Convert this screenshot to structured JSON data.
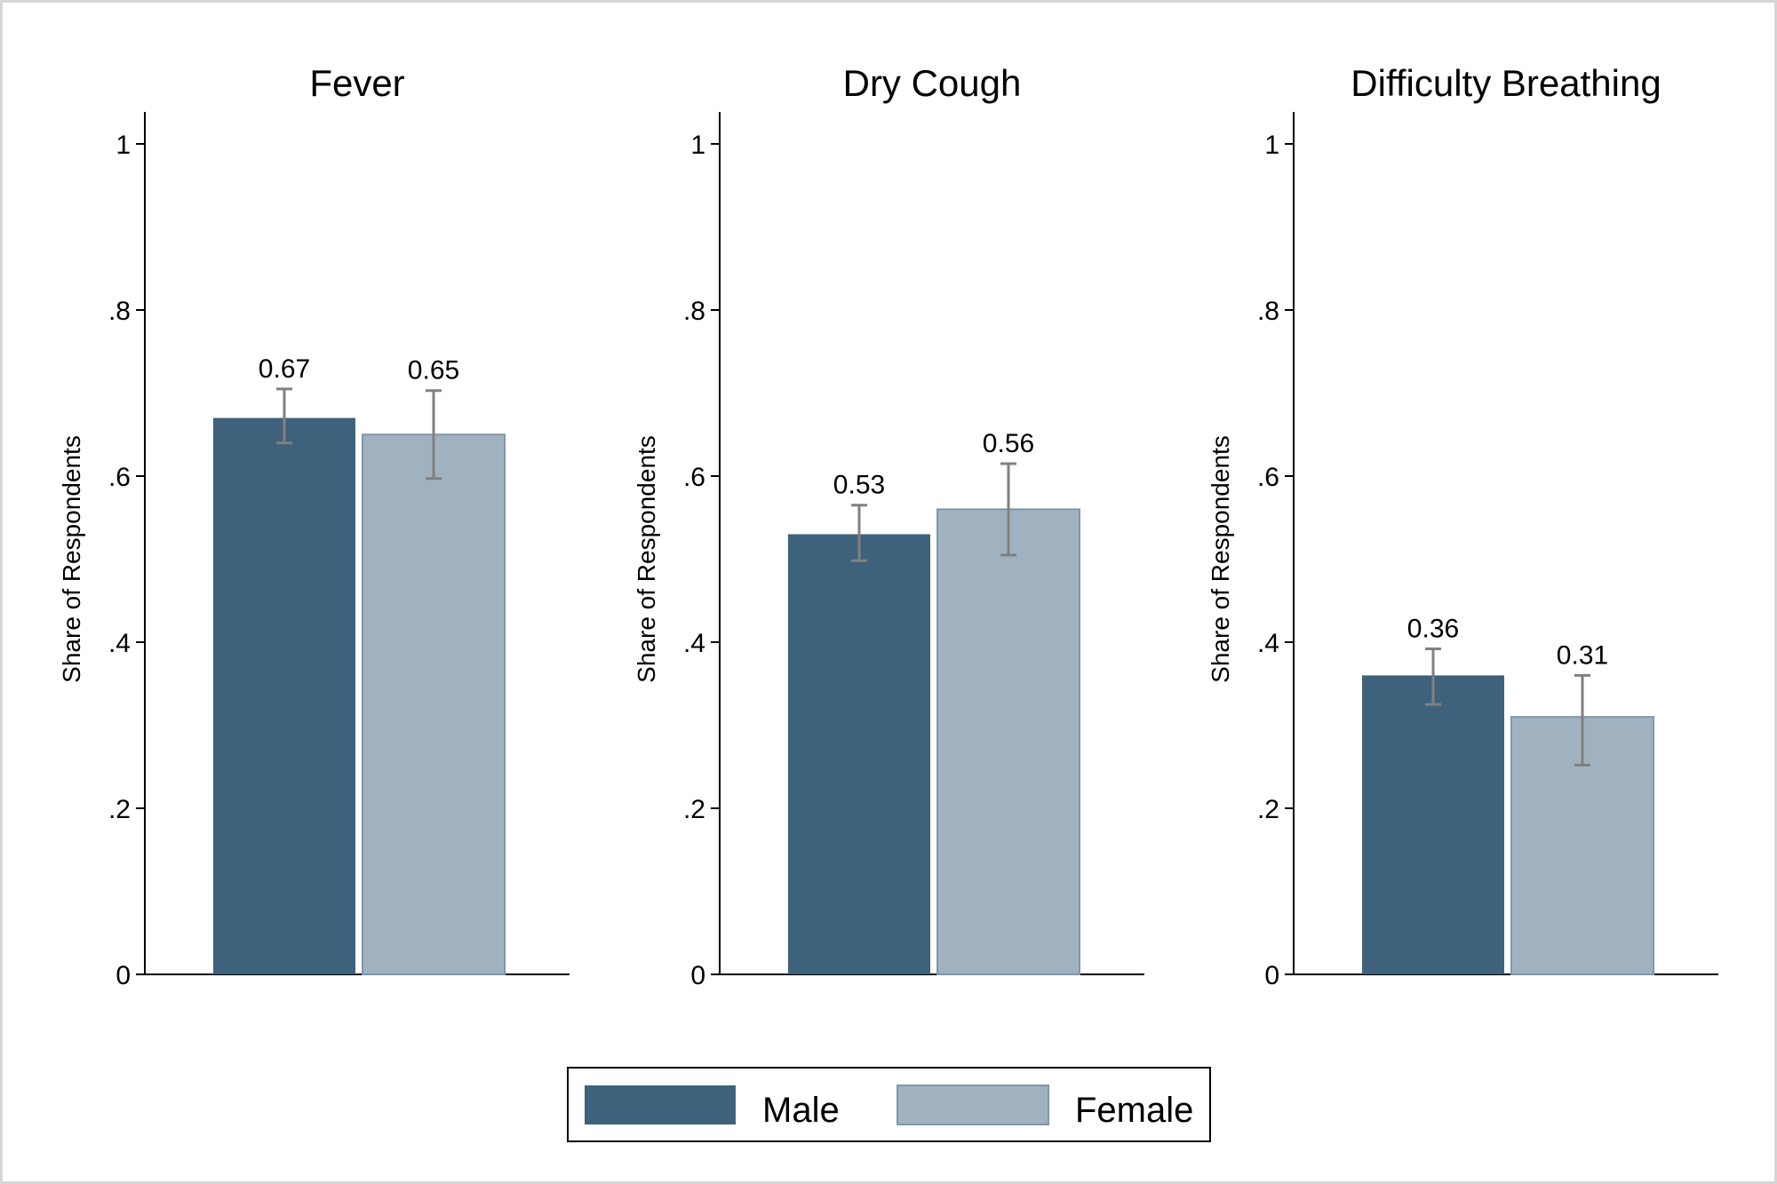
{
  "chart_data": [
    {
      "type": "bar",
      "title": "Fever",
      "ylabel": "Share of Respondents",
      "ylim": [
        0,
        1
      ],
      "yticks": [
        0,
        0.2,
        0.4,
        0.6,
        0.8,
        1
      ],
      "ytick_labels": [
        "0",
        ".2",
        ".4",
        ".6",
        ".8",
        "1"
      ],
      "series": [
        {
          "name": "Male",
          "value": 0.67,
          "label": "0.67",
          "ci": [
            0.64,
            0.705
          ]
        },
        {
          "name": "Female",
          "value": 0.65,
          "label": "0.65",
          "ci": [
            0.597,
            0.703
          ]
        }
      ]
    },
    {
      "type": "bar",
      "title": "Dry Cough",
      "ylabel": "Share of Respondents",
      "ylim": [
        0,
        1
      ],
      "yticks": [
        0,
        0.2,
        0.4,
        0.6,
        0.8,
        1
      ],
      "ytick_labels": [
        "0",
        ".2",
        ".4",
        ".6",
        ".8",
        "1"
      ],
      "series": [
        {
          "name": "Male",
          "value": 0.53,
          "label": "0.53",
          "ci": [
            0.498,
            0.565
          ]
        },
        {
          "name": "Female",
          "value": 0.56,
          "label": "0.56",
          "ci": [
            0.505,
            0.615
          ]
        }
      ]
    },
    {
      "type": "bar",
      "title": "Difficulty Breathing",
      "ylabel": "Share of Respondents",
      "ylim": [
        0,
        1
      ],
      "yticks": [
        0,
        0.2,
        0.4,
        0.6,
        0.8,
        1
      ],
      "ytick_labels": [
        "0",
        ".2",
        ".4",
        ".6",
        ".8",
        "1"
      ],
      "series": [
        {
          "name": "Male",
          "value": 0.36,
          "label": "0.36",
          "ci": [
            0.325,
            0.392
          ]
        },
        {
          "name": "Female",
          "value": 0.31,
          "label": "0.31",
          "ci": [
            0.252,
            0.36
          ]
        }
      ]
    }
  ],
  "legend": {
    "placement": "bottom-center",
    "items": [
      {
        "label": "Male",
        "color": "#3e627b"
      },
      {
        "label": "Female",
        "color": "#a0b2bf"
      }
    ]
  },
  "colors": {
    "male": "#3e627b",
    "female": "#a0b2bf",
    "female_border": "#7f96a8",
    "errorbar": "#808080",
    "axis": "#000000"
  }
}
